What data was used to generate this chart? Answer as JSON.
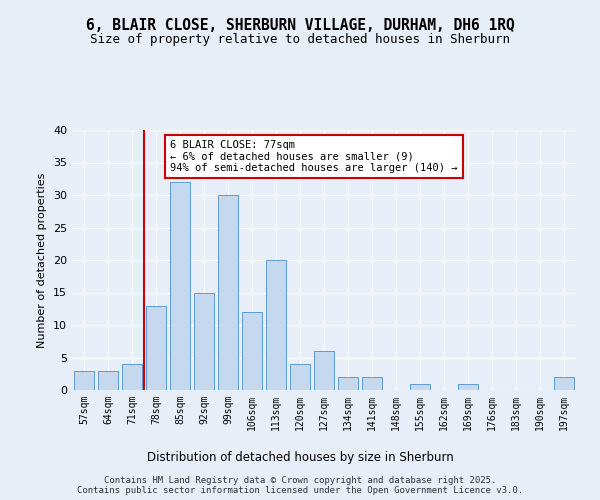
{
  "title_line1": "6, BLAIR CLOSE, SHERBURN VILLAGE, DURHAM, DH6 1RQ",
  "title_line2": "Size of property relative to detached houses in Sherburn",
  "xlabel": "Distribution of detached houses by size in Sherburn",
  "ylabel": "Number of detached properties",
  "categories": [
    "57sqm",
    "64sqm",
    "71sqm",
    "78sqm",
    "85sqm",
    "92sqm",
    "99sqm",
    "106sqm",
    "113sqm",
    "120sqm",
    "127sqm",
    "134sqm",
    "141sqm",
    "148sqm",
    "155sqm",
    "162sqm",
    "169sqm",
    "176sqm",
    "183sqm",
    "190sqm",
    "197sqm"
  ],
  "values": [
    3,
    3,
    4,
    13,
    32,
    15,
    30,
    12,
    20,
    4,
    6,
    2,
    2,
    0,
    1,
    0,
    1,
    0,
    0,
    0,
    2
  ],
  "bar_color": "#c5d8ed",
  "bar_edge_color": "#5b9bd5",
  "vline_index": 3,
  "vline_color": "#cc0000",
  "annotation_line1": "6 BLAIR CLOSE: 77sqm",
  "annotation_line2": "← 6% of detached houses are smaller (9)",
  "annotation_line3": "94% of semi-detached houses are larger (140) →",
  "annotation_box_edge": "#cc0000",
  "background_color": "#e8eef8",
  "grid_color": "#ffffff",
  "ylim": [
    0,
    40
  ],
  "yticks": [
    0,
    5,
    10,
    15,
    20,
    25,
    30,
    35,
    40
  ],
  "footer_line1": "Contains HM Land Registry data © Crown copyright and database right 2025.",
  "footer_line2": "Contains public sector information licensed under the Open Government Licence v3.0."
}
